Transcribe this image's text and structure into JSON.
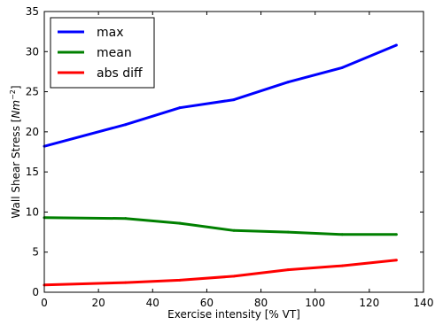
{
  "chart_data": {
    "type": "line",
    "title": "",
    "xlabel": "Exercise intensity [% VT]",
    "ylabel_text": "Wall Shear Stress [",
    "ylabel_unit": "Nm",
    "ylabel_exp": "−2",
    "ylabel_close": "]",
    "xlim": [
      0,
      140
    ],
    "ylim": [
      0,
      35
    ],
    "xticks": [
      0,
      20,
      40,
      60,
      80,
      100,
      120,
      140
    ],
    "yticks": [
      0,
      5,
      10,
      15,
      20,
      25,
      30,
      35
    ],
    "grid": false,
    "legend_position": "top-left",
    "series": [
      {
        "name": "max",
        "color": "#0000ff",
        "points": [
          [
            0,
            18.2
          ],
          [
            30,
            20.9
          ],
          [
            50,
            23.0
          ],
          [
            70,
            24.0
          ],
          [
            90,
            26.2
          ],
          [
            110,
            28.0
          ],
          [
            130,
            30.8
          ]
        ]
      },
      {
        "name": "mean",
        "color": "#008000",
        "points": [
          [
            0,
            9.3
          ],
          [
            30,
            9.2
          ],
          [
            50,
            8.6
          ],
          [
            70,
            7.7
          ],
          [
            90,
            7.5
          ],
          [
            110,
            7.2
          ],
          [
            130,
            7.2
          ]
        ]
      },
      {
        "name": "abs diff",
        "color": "#ff0000",
        "points": [
          [
            0,
            0.9
          ],
          [
            30,
            1.2
          ],
          [
            50,
            1.5
          ],
          [
            70,
            2.0
          ],
          [
            90,
            2.8
          ],
          [
            110,
            3.3
          ],
          [
            130,
            4.0
          ]
        ]
      }
    ]
  }
}
